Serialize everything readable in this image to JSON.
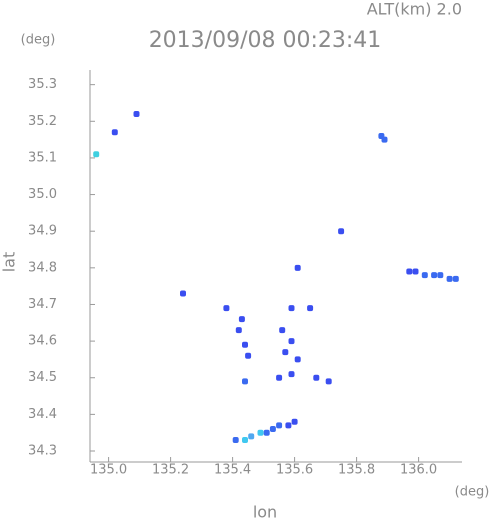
{
  "chart_data": {
    "type": "scatter",
    "header": "ALT(km) 2.0",
    "title": "2013/09/08 00:23:41",
    "y_unit": "(deg)",
    "x_unit": "(deg)",
    "xlabel": "lon",
    "ylabel": "lat",
    "xlim": [
      134.94,
      136.14
    ],
    "ylim": [
      34.27,
      35.34
    ],
    "xticks": [
      {
        "value": 135,
        "label": "135.0"
      },
      135.2,
      135.4,
      135.6,
      135.8,
      {
        "value": 136,
        "label": "136.0"
      }
    ],
    "yticks": [
      34.3,
      34.4,
      34.5,
      34.6,
      34.7,
      34.8,
      34.9,
      {
        "value": 35,
        "label": "35.0"
      },
      35.1,
      35.2,
      35.3
    ],
    "x": [
      135.09,
      135.02,
      134.96,
      135.88,
      135.89,
      135.75,
      135.61,
      135.24,
      135.97,
      135.99,
      136.02,
      136.05,
      136.07,
      136.1,
      136.12,
      135.38,
      135.43,
      135.42,
      135.44,
      135.45,
      135.59,
      135.65,
      135.56,
      135.59,
      135.57,
      135.61,
      135.55,
      135.59,
      135.67,
      135.71,
      135.44,
      135.41,
      135.44,
      135.46,
      135.49,
      135.51,
      135.53,
      135.55,
      135.58,
      135.6
    ],
    "y": [
      35.22,
      35.17,
      35.11,
      35.16,
      35.15,
      34.9,
      34.8,
      34.73,
      34.79,
      34.79,
      34.78,
      34.78,
      34.78,
      34.77,
      34.77,
      34.69,
      34.66,
      34.63,
      34.59,
      34.56,
      34.69,
      34.69,
      34.63,
      34.6,
      34.57,
      34.55,
      34.5,
      34.51,
      34.5,
      34.49,
      34.49,
      34.33,
      34.33,
      34.34,
      34.35,
      34.35,
      34.36,
      34.37,
      34.37,
      34.38
    ],
    "colors": [
      "#3a4ef0",
      "#3a4ef0",
      "#40d0e0",
      "#3a6af0",
      "#3a6af0",
      "#3a4ef0",
      "#3a4ef0",
      "#3a4ef0",
      "#3a4ef0",
      "#3a4ef0",
      "#3a6af0",
      "#3a6af0",
      "#3a6af0",
      "#3a6af0",
      "#3a6af0",
      "#3a4ef0",
      "#3a4ef0",
      "#3a4ef0",
      "#3a4ef0",
      "#3a4ef0",
      "#3a4ef0",
      "#3a4ef0",
      "#3a4ef0",
      "#3a4ef0",
      "#3a4ef0",
      "#3a4ef0",
      "#3a4ef0",
      "#3a4ef0",
      "#3a4ef0",
      "#3a4ef0",
      "#3a6af0",
      "#3a6af0",
      "#40c8f0",
      "#50a8f0",
      "#40c8f0",
      "#3a6af0",
      "#3a6af0",
      "#3a6af0",
      "#3a4ef0",
      "#3a4ef0"
    ]
  }
}
